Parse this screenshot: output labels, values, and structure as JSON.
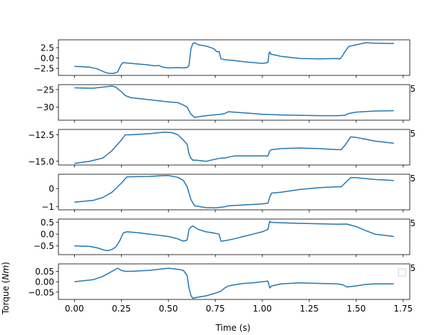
{
  "figure": {
    "xlabel": "Time (s)",
    "ylabel_prefix": "Torque (",
    "ylabel_unit": "Nm",
    "ylabel_suffix": ")",
    "line_color": "#1f77b4",
    "x_ticks": [
      "0.00",
      "0.25",
      "0.50",
      "0.75",
      "1.00",
      "1.25",
      "1.50",
      "1.75"
    ],
    "clipped_tick_fragment": "5"
  },
  "chart_data": [
    {
      "type": "line",
      "xlim": [
        -0.085,
        1.785
      ],
      "ylim": [
        -4.2,
        4.4
      ],
      "yticks": [
        -2.5,
        0.0,
        2.5
      ],
      "ytick_labels": [
        "−2.5",
        "0.0",
        "2.5"
      ],
      "x": [
        0.0,
        0.08,
        0.12,
        0.16,
        0.18,
        0.21,
        0.23,
        0.25,
        0.26,
        0.28,
        0.35,
        0.38,
        0.43,
        0.45,
        0.47,
        0.5,
        0.55,
        0.58,
        0.6,
        0.61,
        0.62,
        0.63,
        0.64,
        0.66,
        0.7,
        0.74,
        0.76,
        0.77,
        0.78,
        0.8,
        0.85,
        0.9,
        0.95,
        1.0,
        1.03,
        1.035,
        1.04,
        1.045,
        1.06,
        1.1,
        1.2,
        1.3,
        1.4,
        1.41,
        1.42,
        1.44,
        1.46,
        1.5,
        1.55,
        1.6,
        1.7
      ],
      "y": [
        -2.0,
        -2.2,
        -2.6,
        -3.4,
        -3.7,
        -3.7,
        -3.4,
        -1.5,
        -1.1,
        -1.2,
        -1.5,
        -1.6,
        -1.9,
        -1.8,
        -2.2,
        -2.4,
        -2.3,
        -2.4,
        -2.3,
        -1.8,
        2.2,
        3.5,
        3.7,
        3.2,
        2.9,
        2.3,
        1.5,
        1.6,
        -0.2,
        -0.4,
        -0.6,
        -0.9,
        -1.1,
        -1.3,
        -1.1,
        1.0,
        1.5,
        0.9,
        0.8,
        0.4,
        -0.1,
        -0.2,
        -0.1,
        -0.3,
        0.1,
        1.5,
        2.8,
        3.2,
        3.7,
        3.6,
        3.5
      ],
      "annotations": []
    },
    {
      "type": "line",
      "xlim": [
        -0.085,
        1.785
      ],
      "ylim": [
        -33.7,
        -23.6
      ],
      "yticks": [
        -25,
        -30
      ],
      "ytick_labels": [
        "−25",
        "−30"
      ],
      "x": [
        0.0,
        0.1,
        0.15,
        0.2,
        0.22,
        0.25,
        0.27,
        0.3,
        0.4,
        0.5,
        0.55,
        0.58,
        0.6,
        0.62,
        0.64,
        0.7,
        0.78,
        0.8,
        0.82,
        0.9,
        1.0,
        1.1,
        1.2,
        1.3,
        1.4,
        1.44,
        1.46,
        1.5,
        1.6,
        1.7
      ],
      "y": [
        -24.5,
        -24.6,
        -24.3,
        -24.0,
        -24.3,
        -25.6,
        -26.7,
        -27.3,
        -27.9,
        -28.5,
        -28.7,
        -29.4,
        -30.0,
        -32.0,
        -32.9,
        -32.4,
        -32.0,
        -31.8,
        -31.3,
        -31.6,
        -32.0,
        -32.2,
        -32.3,
        -32.4,
        -32.4,
        -32.3,
        -31.8,
        -31.4,
        -31.1,
        -31.0
      ],
      "annotations": []
    },
    {
      "type": "line",
      "xlim": [
        -0.085,
        1.785
      ],
      "ylim": [
        -15.35,
        -12.0
      ],
      "yticks": [
        -12.5,
        -15.0
      ],
      "ytick_labels": [
        "−12.5",
        "−15.0"
      ],
      "x": [
        0.0,
        0.08,
        0.15,
        0.2,
        0.25,
        0.27,
        0.3,
        0.35,
        0.4,
        0.45,
        0.48,
        0.52,
        0.55,
        0.58,
        0.6,
        0.61,
        0.62,
        0.63,
        0.65,
        0.7,
        0.75,
        0.78,
        0.8,
        0.82,
        0.85,
        0.9,
        0.95,
        1.0,
        1.03,
        1.04,
        1.05,
        1.1,
        1.2,
        1.3,
        1.4,
        1.42,
        1.44,
        1.47,
        1.5,
        1.6,
        1.7
      ],
      "y": [
        -15.2,
        -15.0,
        -14.7,
        -14.0,
        -13.0,
        -12.5,
        -12.5,
        -12.45,
        -12.4,
        -12.3,
        -12.25,
        -12.3,
        -12.5,
        -13.0,
        -13.4,
        -14.3,
        -14.7,
        -14.9,
        -14.9,
        -15.0,
        -14.8,
        -14.7,
        -14.7,
        -14.6,
        -14.5,
        -14.5,
        -14.5,
        -14.5,
        -14.5,
        -14.0,
        -13.9,
        -13.8,
        -13.75,
        -13.8,
        -13.9,
        -13.9,
        -13.5,
        -12.7,
        -12.75,
        -13.1,
        -13.3
      ],
      "annotations": []
    },
    {
      "type": "line",
      "xlim": [
        -0.085,
        1.785
      ],
      "ylim": [
        -1.17,
        0.79
      ],
      "yticks": [
        0,
        -1
      ],
      "ytick_labels": [
        "0",
        "−1"
      ],
      "x": [
        0.0,
        0.1,
        0.15,
        0.2,
        0.25,
        0.28,
        0.35,
        0.4,
        0.45,
        0.5,
        0.55,
        0.58,
        0.6,
        0.62,
        0.64,
        0.7,
        0.75,
        0.8,
        0.82,
        0.9,
        1.0,
        1.03,
        1.04,
        1.05,
        1.1,
        1.2,
        1.3,
        1.4,
        1.42,
        1.44,
        1.47,
        1.5,
        1.6,
        1.7
      ],
      "y": [
        -0.75,
        -0.65,
        -0.5,
        -0.2,
        0.3,
        0.65,
        0.66,
        0.67,
        0.7,
        0.72,
        0.62,
        0.45,
        0.1,
        -0.6,
        -0.95,
        -1.05,
        -1.06,
        -1.0,
        -0.95,
        -0.9,
        -0.85,
        -0.8,
        -0.45,
        -0.25,
        -0.2,
        -0.05,
        0.05,
        0.1,
        0.1,
        0.3,
        0.6,
        0.6,
        0.5,
        0.45
      ],
      "annotations": []
    },
    {
      "type": "line",
      "xlim": [
        -0.085,
        1.785
      ],
      "ylim": [
        -0.87,
        0.64
      ],
      "yticks": [
        0.5,
        0.0,
        -0.5
      ],
      "ytick_labels": [
        "0.5",
        "0.0",
        "−0.5"
      ],
      "x": [
        0.0,
        0.08,
        0.12,
        0.16,
        0.18,
        0.2,
        0.22,
        0.24,
        0.26,
        0.28,
        0.35,
        0.4,
        0.45,
        0.5,
        0.55,
        0.58,
        0.6,
        0.61,
        0.62,
        0.63,
        0.64,
        0.66,
        0.7,
        0.74,
        0.77,
        0.78,
        0.8,
        0.85,
        0.9,
        0.95,
        1.0,
        1.03,
        1.035,
        1.04,
        1.045,
        1.1,
        1.2,
        1.3,
        1.4,
        1.45,
        1.5,
        1.55,
        1.6,
        1.7
      ],
      "y": [
        -0.5,
        -0.52,
        -0.58,
        -0.68,
        -0.7,
        -0.65,
        -0.55,
        -0.3,
        0.05,
        0.1,
        0.05,
        0.0,
        -0.05,
        -0.1,
        -0.2,
        -0.3,
        -0.25,
        0.2,
        0.3,
        0.35,
        0.3,
        0.2,
        0.1,
        0.05,
        0.0,
        -0.3,
        -0.28,
        -0.2,
        -0.1,
        0.0,
        0.1,
        0.2,
        0.4,
        0.55,
        0.5,
        0.48,
        0.46,
        0.44,
        0.42,
        0.43,
        0.32,
        0.15,
        0.0,
        -0.1
      ],
      "annotations": []
    },
    {
      "type": "line",
      "xlim": [
        -0.085,
        1.785
      ],
      "ylim": [
        -0.085,
        0.086
      ],
      "yticks": [
        0.05,
        0.0,
        -0.05
      ],
      "ytick_labels": [
        "0.05",
        "0.00",
        "−0.05"
      ],
      "x": [
        0.0,
        0.1,
        0.15,
        0.2,
        0.23,
        0.25,
        0.27,
        0.3,
        0.4,
        0.45,
        0.5,
        0.55,
        0.58,
        0.6,
        0.61,
        0.62,
        0.63,
        0.65,
        0.7,
        0.75,
        0.78,
        0.8,
        0.82,
        0.85,
        0.9,
        0.95,
        1.0,
        1.03,
        1.04,
        1.05,
        1.1,
        1.2,
        1.3,
        1.4,
        1.43,
        1.45,
        1.5,
        1.55,
        1.6,
        1.7
      ],
      "y": [
        0.0,
        0.01,
        0.025,
        0.05,
        0.065,
        0.055,
        0.05,
        0.05,
        0.055,
        0.06,
        0.065,
        0.06,
        0.055,
        0.03,
        -0.03,
        -0.065,
        -0.08,
        -0.075,
        -0.068,
        -0.055,
        -0.045,
        -0.03,
        -0.02,
        -0.015,
        -0.008,
        -0.005,
        0.0,
        0.003,
        -0.03,
        -0.02,
        -0.01,
        -0.005,
        -0.008,
        -0.01,
        -0.015,
        -0.025,
        -0.02,
        -0.013,
        -0.01,
        -0.01
      ],
      "annotations": []
    }
  ]
}
